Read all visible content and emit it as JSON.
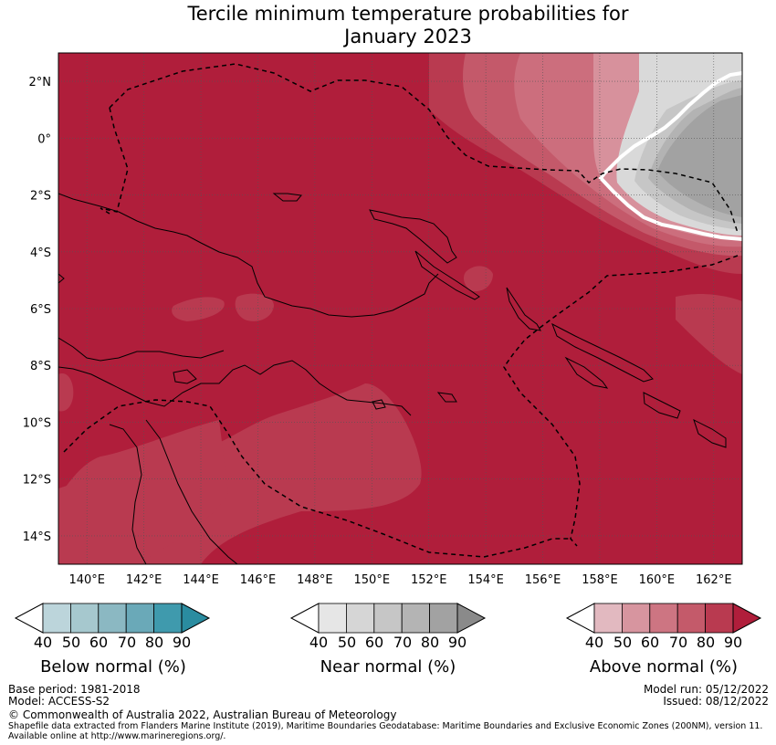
{
  "title": {
    "line1": "Tercile minimum temperature probabilities for",
    "line2": "January 2023"
  },
  "map": {
    "lat_labels": [
      "2°N",
      "0°",
      "2°S",
      "4°S",
      "6°S",
      "8°S",
      "10°S",
      "12°S",
      "14°S"
    ],
    "lon_labels": [
      "140°E",
      "142°E",
      "144°E",
      "146°E",
      "148°E",
      "150°E",
      "152°E",
      "154°E",
      "156°E",
      "158°E",
      "160°E",
      "162°E"
    ],
    "lat_range": [
      -15,
      3
    ],
    "lon_range": [
      139,
      163
    ],
    "colors": {
      "above_50": "#d7919c",
      "above_60": "#cc6e7d",
      "above_70": "#c4596a",
      "above_80": "#b93a50",
      "above_90": "#b01e3b",
      "near_50": "#d9d9d9",
      "near_60": "#c6c6c6",
      "near_70": "#b3b3b3",
      "near_80": "#a2a2a2"
    }
  },
  "legends": {
    "below": {
      "label": "Below normal (%)",
      "ticks": [
        "40",
        "50",
        "60",
        "70",
        "80",
        "90"
      ],
      "colors": [
        "#bcd5db",
        "#a6c8ce",
        "#8bb8c2",
        "#6aa9b8",
        "#3f9aad",
        "#2a8ca0"
      ]
    },
    "near": {
      "label": "Near normal (%)",
      "ticks": [
        "40",
        "50",
        "60",
        "70",
        "80",
        "90"
      ],
      "colors": [
        "#e6e6e6",
        "#d6d6d6",
        "#c6c6c6",
        "#b4b4b4",
        "#a2a2a2",
        "#8a8a8a"
      ]
    },
    "above": {
      "label": "Above normal (%)",
      "ticks": [
        "40",
        "50",
        "60",
        "70",
        "80",
        "90"
      ],
      "colors": [
        "#e2b9c0",
        "#d7959f",
        "#cd7582",
        "#c45a6a",
        "#b93a50",
        "#b01e3b"
      ]
    }
  },
  "footer": {
    "base_period": "Base period: 1981-2018",
    "model": "Model: ACCESS-S2",
    "model_run": "Model run: 05/12/2022",
    "issued": "Issued: 08/12/2022",
    "copyright": "© Commonwealth of Australia 2022, Australian Bureau of Meteorology",
    "shapefile_line1": "Shapefile data extracted from Flanders Marine Institute (2019), Maritime Boundaries Geodatabase: Maritime Boundaries and Exclusive Economic Zones (200NM), version 11.",
    "shapefile_line2": "Available online at http://www.marineregions.org/."
  }
}
